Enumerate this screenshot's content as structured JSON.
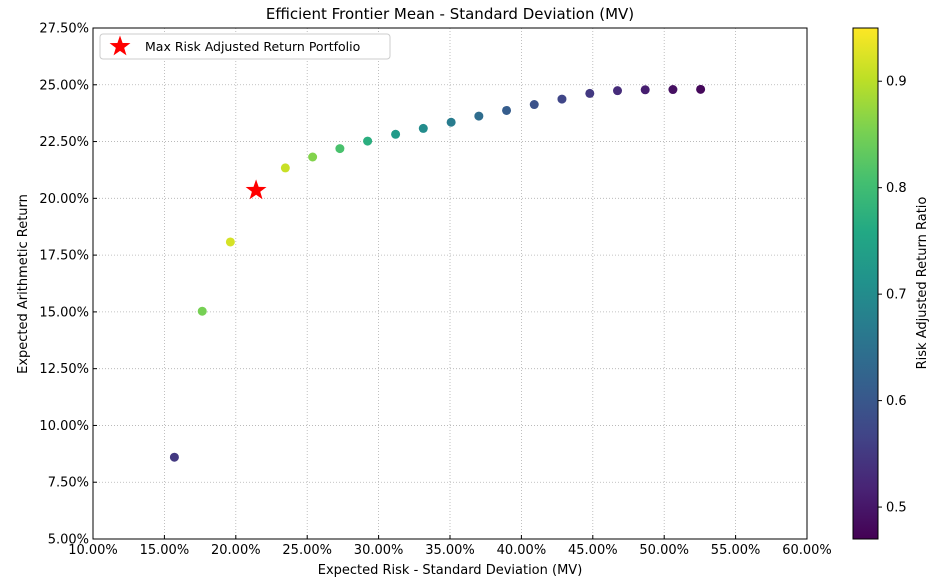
{
  "chart_data": {
    "type": "scatter",
    "title": "Efficient Frontier Mean - Standard Deviation (MV)",
    "xlabel": "Expected Risk - Standard Deviation (MV)",
    "ylabel": "Expected Arithmetic Return",
    "xlim": [
      0.1,
      0.6
    ],
    "ylim": [
      0.05,
      0.275
    ],
    "x_ticks": [
      0.1,
      0.15,
      0.2,
      0.25,
      0.3,
      0.35,
      0.4,
      0.45,
      0.5,
      0.55,
      0.6
    ],
    "x_tick_labels": [
      "10.00%",
      "15.00%",
      "20.00%",
      "25.00%",
      "30.00%",
      "35.00%",
      "40.00%",
      "45.00%",
      "50.00%",
      "55.00%",
      "60.00%"
    ],
    "y_ticks": [
      0.05,
      0.075,
      0.1,
      0.125,
      0.15,
      0.175,
      0.2,
      0.225,
      0.25,
      0.275
    ],
    "y_tick_labels": [
      "5.00%",
      "7.50%",
      "10.00%",
      "12.50%",
      "15.00%",
      "17.50%",
      "20.00%",
      "22.50%",
      "25.00%",
      "27.50%"
    ],
    "grid": true,
    "colorbar": {
      "label": "Risk Adjusted Return Ratio",
      "colormap": "viridis",
      "range": [
        0.47,
        0.95
      ],
      "ticks": [
        0.5,
        0.6,
        0.7,
        0.8,
        0.9
      ],
      "tick_labels": [
        "0.5",
        "0.6",
        "0.7",
        "0.8",
        "0.9"
      ]
    },
    "series": [
      {
        "x": [
          0.157,
          0.1765,
          0.1962,
          0.2347,
          0.2538,
          0.2729,
          0.2923,
          0.3119,
          0.3313,
          0.3508,
          0.3702,
          0.3896,
          0.409,
          0.4284,
          0.4479,
          0.4673,
          0.4867,
          0.5061,
          0.5255
        ],
        "y": [
          0.086,
          0.1503,
          0.1808,
          0.2134,
          0.2182,
          0.2219,
          0.2252,
          0.2282,
          0.2308,
          0.2335,
          0.2362,
          0.2387,
          0.2413,
          0.2437,
          0.2462,
          0.2474,
          0.2478,
          0.2479,
          0.248
        ],
        "color_values": [
          0.55,
          0.85,
          0.92,
          0.91,
          0.86,
          0.81,
          0.77,
          0.73,
          0.7,
          0.67,
          0.64,
          0.61,
          0.59,
          0.57,
          0.55,
          0.53,
          0.51,
          0.49,
          0.48
        ]
      }
    ],
    "highlight": {
      "name": "Max Risk Adjusted Return Portfolio",
      "x": 0.2142,
      "y": 0.2035,
      "marker": "star",
      "color": "#ff0000"
    },
    "legend": {
      "placement": "top-left",
      "entries": [
        "Max Risk Adjusted Return Portfolio"
      ]
    }
  }
}
